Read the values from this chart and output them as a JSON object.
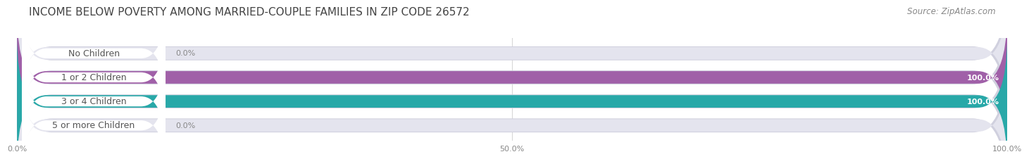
{
  "title": "INCOME BELOW POVERTY AMONG MARRIED-COUPLE FAMILIES IN ZIP CODE 26572",
  "source": "Source: ZipAtlas.com",
  "categories": [
    "No Children",
    "1 or 2 Children",
    "3 or 4 Children",
    "5 or more Children"
  ],
  "values": [
    0.0,
    100.0,
    100.0,
    0.0
  ],
  "bar_colors": [
    "#a8b8e0",
    "#a060a8",
    "#28a8a8",
    "#b0b0d8"
  ],
  "bar_bg_color": "#e4e4ee",
  "bar_border_color": "#d0d0de",
  "background_color": "#ffffff",
  "label_color": "#555555",
  "value_color_inside": "#ffffff",
  "value_color_outside": "#888888",
  "grid_color": "#d8d8d8",
  "title_color": "#444444",
  "source_color": "#888888",
  "xlim": [
    0,
    100
  ],
  "xticks": [
    0.0,
    50.0,
    100.0
  ],
  "xtick_labels": [
    "0.0%",
    "50.0%",
    "100.0%"
  ],
  "title_fontsize": 11,
  "source_fontsize": 8.5,
  "label_fontsize": 9,
  "value_fontsize": 8,
  "tick_fontsize": 8
}
